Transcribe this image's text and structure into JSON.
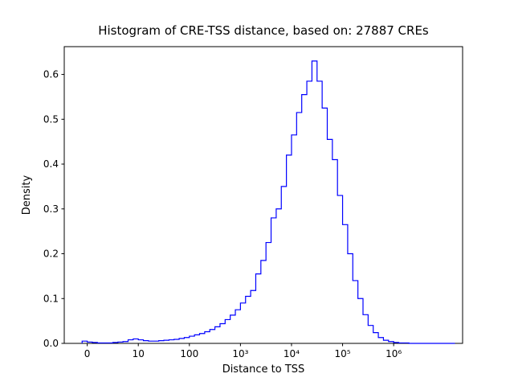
{
  "figure": {
    "title": "Histogram of CRE-TSS distance, based on: 27887 CREs",
    "xlabel": "Distance to TSS",
    "ylabel": "Density",
    "background_color": "#ffffff",
    "spine_color": "#000000"
  },
  "chart_data": {
    "type": "bar",
    "subtype": "histogram-step",
    "title": "Histogram of CRE-TSS distance, based on: 27887 CREs",
    "xlabel": "Distance to TSS",
    "ylabel": "Density",
    "x_scale": "log10 of distance; tick labels show raw distance",
    "n_items": 27887,
    "line_color": "#0000ff",
    "grid": false,
    "legend": null,
    "bin_start_log10": -0.1,
    "bin_width_log10": 0.1,
    "densities": [
      0.005,
      0.003,
      0.002,
      0.001,
      0.001,
      0.001,
      0.002,
      0.003,
      0.004,
      0.008,
      0.01,
      0.008,
      0.006,
      0.005,
      0.005,
      0.006,
      0.007,
      0.008,
      0.009,
      0.011,
      0.013,
      0.016,
      0.019,
      0.022,
      0.026,
      0.031,
      0.037,
      0.044,
      0.053,
      0.063,
      0.075,
      0.09,
      0.105,
      0.118,
      0.155,
      0.185,
      0.225,
      0.28,
      0.3,
      0.35,
      0.42,
      0.465,
      0.515,
      0.555,
      0.585,
      0.63,
      0.585,
      0.525,
      0.455,
      0.41,
      0.33,
      0.265,
      0.2,
      0.14,
      0.1,
      0.064,
      0.04,
      0.024,
      0.013,
      0.007,
      0.004,
      0.002,
      0.001,
      0.001,
      0.0,
      0.0,
      0.0,
      0.0,
      0.0,
      0.0,
      0.0,
      0.0,
      0.0
    ],
    "xticks": [
      {
        "pos": 0,
        "label": "0"
      },
      {
        "pos": 1,
        "label": "10"
      },
      {
        "pos": 2,
        "label": "100"
      },
      {
        "pos": 3,
        "label": "10³"
      },
      {
        "pos": 4,
        "label": "10⁴"
      },
      {
        "pos": 5,
        "label": "10⁵"
      },
      {
        "pos": 6,
        "label": "10⁶"
      }
    ],
    "yticks": [
      0.0,
      0.1,
      0.2,
      0.3,
      0.4,
      0.5,
      0.6
    ],
    "xlim": [
      -0.45,
      7.35
    ],
    "ylim": [
      0,
      0.662
    ]
  }
}
